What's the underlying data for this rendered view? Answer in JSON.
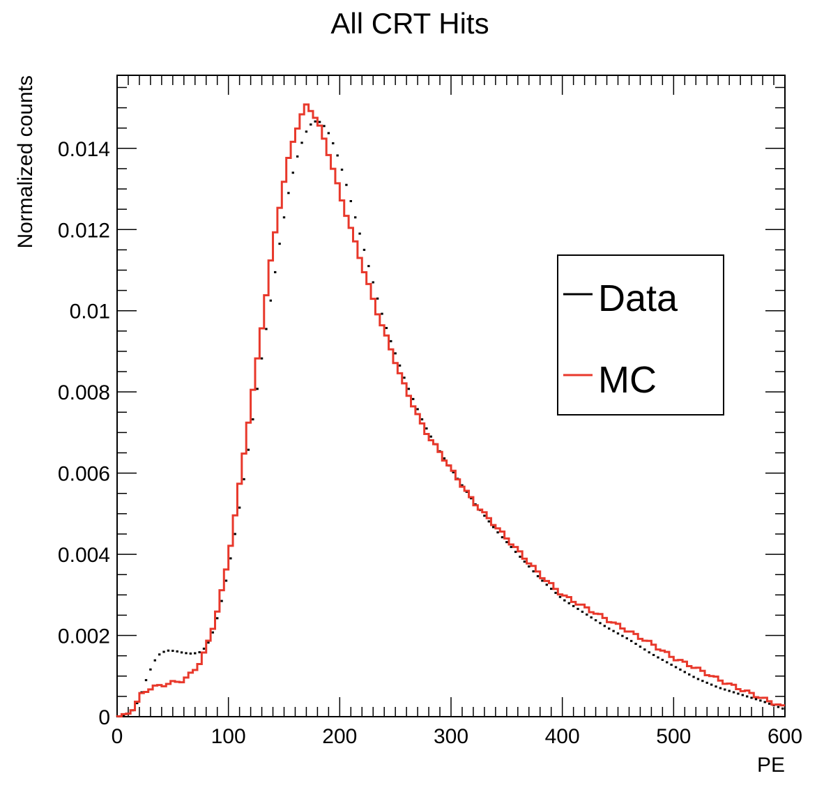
{
  "chart_data": {
    "type": "histogram",
    "title": "All CRT Hits",
    "xlabel": "PE",
    "ylabel": "Normalized counts",
    "xlim": [
      0,
      600
    ],
    "ylim": [
      0,
      0.0158
    ],
    "x_ticks": [
      "0",
      "100",
      "200",
      "300",
      "400",
      "500",
      "600"
    ],
    "y_ticks": [
      "0",
      "0.002",
      "0.004",
      "0.006",
      "0.008",
      "0.01",
      "0.012",
      "0.014"
    ],
    "legend": {
      "position": "right",
      "entries": [
        "Data",
        "MC"
      ]
    },
    "bin_width": 4,
    "series": [
      {
        "name": "Data",
        "color": "#000000",
        "style": "points",
        "knots": [
          [
            0,
            0
          ],
          [
            8,
            3e-05
          ],
          [
            16,
            0.0002
          ],
          [
            22,
            0.0006
          ],
          [
            28,
            0.00105
          ],
          [
            36,
            0.0015
          ],
          [
            44,
            0.00163
          ],
          [
            52,
            0.00162
          ],
          [
            60,
            0.00157
          ],
          [
            68,
            0.00155
          ],
          [
            76,
            0.0016
          ],
          [
            84,
            0.0019
          ],
          [
            92,
            0.0026
          ],
          [
            100,
            0.0036
          ],
          [
            108,
            0.0048
          ],
          [
            116,
            0.0062
          ],
          [
            124,
            0.0077
          ],
          [
            132,
            0.0092
          ],
          [
            140,
            0.0106
          ],
          [
            148,
            0.012
          ],
          [
            156,
            0.0132
          ],
          [
            164,
            0.014
          ],
          [
            172,
            0.01455
          ],
          [
            180,
            0.0147
          ],
          [
            188,
            0.0145
          ],
          [
            196,
            0.014
          ],
          [
            204,
            0.0133
          ],
          [
            212,
            0.0125
          ],
          [
            220,
            0.0117
          ],
          [
            228,
            0.0109
          ],
          [
            236,
            0.0101
          ],
          [
            244,
            0.0094
          ],
          [
            252,
            0.0088
          ],
          [
            260,
            0.0082
          ],
          [
            268,
            0.0077
          ],
          [
            276,
            0.0072
          ],
          [
            284,
            0.0068
          ],
          [
            300,
            0.0061
          ],
          [
            320,
            0.0053
          ],
          [
            340,
            0.0046
          ],
          [
            360,
            0.004
          ],
          [
            380,
            0.0034
          ],
          [
            400,
            0.0029
          ],
          [
            420,
            0.00255
          ],
          [
            440,
            0.0022
          ],
          [
            460,
            0.0019
          ],
          [
            480,
            0.00155
          ],
          [
            500,
            0.00125
          ],
          [
            520,
            0.00095
          ],
          [
            540,
            0.00072
          ],
          [
            560,
            0.00055
          ],
          [
            580,
            0.00038
          ],
          [
            600,
            0.00018
          ]
        ]
      },
      {
        "name": "MC",
        "color": "#e8382b",
        "style": "step",
        "knots": [
          [
            0,
            0
          ],
          [
            8,
            3e-05
          ],
          [
            16,
            0.00025
          ],
          [
            22,
            0.00055
          ],
          [
            28,
            0.00068
          ],
          [
            36,
            0.00075
          ],
          [
            44,
            0.0008
          ],
          [
            52,
            0.00085
          ],
          [
            60,
            0.0009
          ],
          [
            68,
            0.0011
          ],
          [
            76,
            0.0014
          ],
          [
            84,
            0.002
          ],
          [
            92,
            0.0028
          ],
          [
            100,
            0.0039
          ],
          [
            108,
            0.0053
          ],
          [
            116,
            0.0069
          ],
          [
            124,
            0.0084
          ],
          [
            132,
            0.01
          ],
          [
            140,
            0.0116
          ],
          [
            148,
            0.0129
          ],
          [
            156,
            0.014
          ],
          [
            164,
            0.0147
          ],
          [
            170,
            0.01505
          ],
          [
            176,
            0.0149
          ],
          [
            184,
            0.0144
          ],
          [
            192,
            0.0137
          ],
          [
            200,
            0.0129
          ],
          [
            208,
            0.0122
          ],
          [
            216,
            0.0115
          ],
          [
            224,
            0.0108
          ],
          [
            232,
            0.0101
          ],
          [
            240,
            0.0095
          ],
          [
            248,
            0.0089
          ],
          [
            256,
            0.0083
          ],
          [
            264,
            0.0078
          ],
          [
            272,
            0.0073
          ],
          [
            280,
            0.0069
          ],
          [
            288,
            0.0066
          ],
          [
            300,
            0.0061
          ],
          [
            320,
            0.0053
          ],
          [
            340,
            0.0047
          ],
          [
            360,
            0.0041
          ],
          [
            380,
            0.0035
          ],
          [
            400,
            0.003
          ],
          [
            420,
            0.0027
          ],
          [
            440,
            0.0024
          ],
          [
            460,
            0.0021
          ],
          [
            480,
            0.0018
          ],
          [
            500,
            0.00145
          ],
          [
            520,
            0.0012
          ],
          [
            540,
            0.00092
          ],
          [
            560,
            0.00068
          ],
          [
            580,
            0.00045
          ],
          [
            600,
            0.00022
          ]
        ]
      }
    ]
  }
}
